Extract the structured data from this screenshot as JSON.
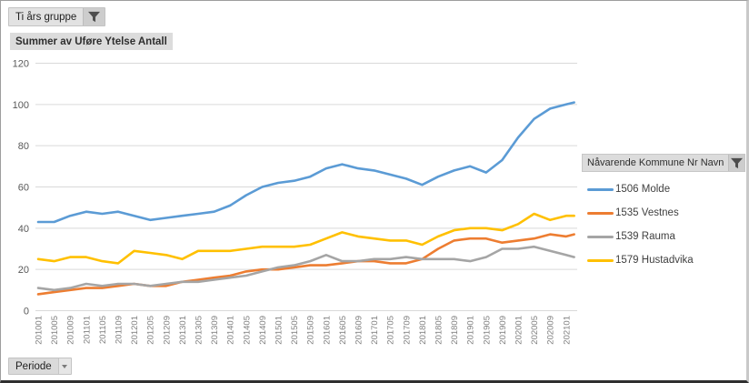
{
  "filters": {
    "group_field": {
      "label": "Ti års gruppe",
      "icon": "filter-funnel"
    },
    "legend_field": {
      "label": "Nåvarende Kommune Nr Navn",
      "icon": "filter-funnel"
    },
    "axis_field": {
      "label": "Periode"
    }
  },
  "chart_data": {
    "type": "line",
    "title": "Summer av Uføre Ytelse Antall",
    "xlabel": "",
    "ylabel": "",
    "ylim": [
      0,
      120
    ],
    "y_ticks": [
      0,
      20,
      40,
      60,
      80,
      100,
      120
    ],
    "grid": true,
    "legend_position": "right",
    "x_tick_labels": [
      "201001",
      "201005",
      "201009",
      "201101",
      "201105",
      "201109",
      "201201",
      "201205",
      "201209",
      "201301",
      "201305",
      "201309",
      "201401",
      "201405",
      "201409",
      "201501",
      "201505",
      "201509",
      "201601",
      "201605",
      "201609",
      "201701",
      "201705",
      "201709",
      "201801",
      "201805",
      "201809",
      "201901",
      "201905",
      "201909",
      "202001",
      "202005",
      "202009",
      "202101"
    ],
    "note": "monthly data sampled at 4-month ticks; last value extends past final tick",
    "series": [
      {
        "name": "1506 Molde",
        "color": "#5B9BD5",
        "values": [
          43,
          43,
          46,
          48,
          47,
          48,
          46,
          44,
          45,
          46,
          47,
          48,
          51,
          56,
          60,
          62,
          63,
          65,
          69,
          71,
          69,
          68,
          66,
          64,
          61,
          65,
          68,
          70,
          67,
          73,
          84,
          93,
          98,
          100,
          101
        ]
      },
      {
        "name": "1535 Vestnes",
        "color": "#ED7D31",
        "values": [
          8,
          9,
          10,
          11,
          11,
          12,
          13,
          12,
          12,
          14,
          15,
          16,
          17,
          19,
          20,
          20,
          21,
          22,
          22,
          23,
          24,
          24,
          23,
          23,
          25,
          30,
          34,
          35,
          35,
          33,
          34,
          35,
          37,
          36,
          37
        ]
      },
      {
        "name": "1539 Rauma",
        "color": "#A5A5A5",
        "values": [
          11,
          10,
          11,
          13,
          12,
          13,
          13,
          12,
          13,
          14,
          14,
          15,
          16,
          17,
          19,
          21,
          22,
          24,
          27,
          24,
          24,
          25,
          25,
          26,
          25,
          25,
          25,
          24,
          26,
          30,
          30,
          31,
          29,
          27,
          26
        ]
      },
      {
        "name": "1579 Hustadvika",
        "color": "#FFC000",
        "values": [
          25,
          24,
          26,
          26,
          24,
          23,
          29,
          28,
          27,
          25,
          29,
          29,
          29,
          30,
          31,
          31,
          31,
          32,
          35,
          38,
          36,
          35,
          34,
          34,
          32,
          36,
          39,
          40,
          40,
          39,
          42,
          47,
          44,
          46,
          46
        ]
      }
    ],
    "axis_colors": {
      "gridline": "#d9d9d9",
      "y_label": "#595959",
      "x_label": "#808080"
    }
  }
}
